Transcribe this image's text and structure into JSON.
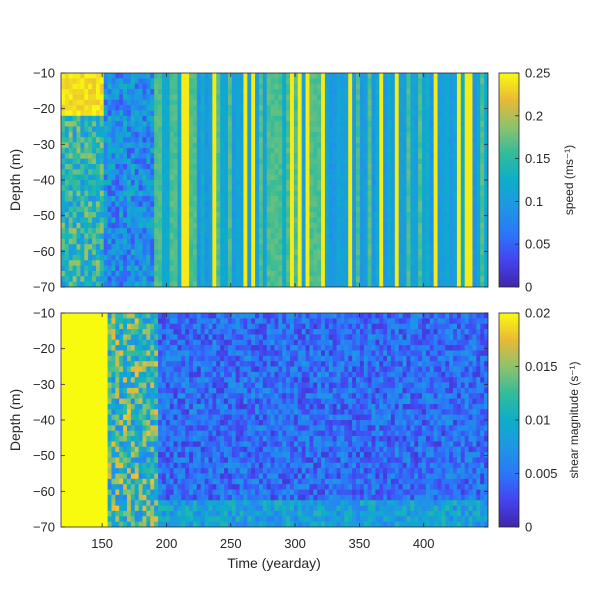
{
  "chart_data": [
    {
      "type": "heatmap",
      "title": "",
      "xlabel": "",
      "ylabel": "Depth (m)",
      "xlim": [
        118,
        450
      ],
      "ylim": [
        -70,
        -10
      ],
      "yticks": [
        -10,
        -20,
        -30,
        -40,
        -50,
        -60,
        -70
      ],
      "grid": false,
      "colorbar": {
        "label": "speed (ms⁻¹)",
        "range": [
          0,
          0.25
        ],
        "ticks": [
          "0.25",
          "0.2",
          "0.15",
          "0.1",
          "0.05",
          "0"
        ],
        "colormap": "parula"
      },
      "regions": [
        {
          "x": [
            118,
            132
          ],
          "depth": [
            -10,
            -22
          ],
          "value": 0.24
        },
        {
          "x": [
            118,
            150
          ],
          "depth": [
            -22,
            -70
          ],
          "value": 0.14
        },
        {
          "x": [
            150,
            190
          ],
          "depth": [
            -10,
            -70
          ],
          "value": 0.1
        },
        {
          "x": [
            190,
            450
          ],
          "depth": [
            -10,
            -70
          ],
          "value": 0.1
        }
      ]
    },
    {
      "type": "heatmap",
      "title": "",
      "xlabel": "Time (yearday)",
      "ylabel": "Depth (m)",
      "xlim": [
        118,
        450
      ],
      "ylim": [
        -70,
        -10
      ],
      "xticks": [
        150,
        200,
        250,
        300,
        350,
        400
      ],
      "yticks": [
        -10,
        -20,
        -30,
        -40,
        -50,
        -60,
        -70
      ],
      "grid": false,
      "colorbar": {
        "label": "shear magnitude (s⁻¹)",
        "range": [
          0,
          0.02
        ],
        "ticks": [
          "0.02",
          "0.015",
          "0.01",
          "0.005",
          "0"
        ],
        "colormap": "parula"
      },
      "regions": [
        {
          "x": [
            118,
            155
          ],
          "depth": [
            -10,
            -70
          ],
          "value": 0.02
        },
        {
          "x": [
            155,
            192
          ],
          "depth": [
            -10,
            -70
          ],
          "value": 0.012
        },
        {
          "x": [
            192,
            450
          ],
          "depth": [
            -10,
            -70
          ],
          "value": 0.004
        }
      ]
    }
  ]
}
